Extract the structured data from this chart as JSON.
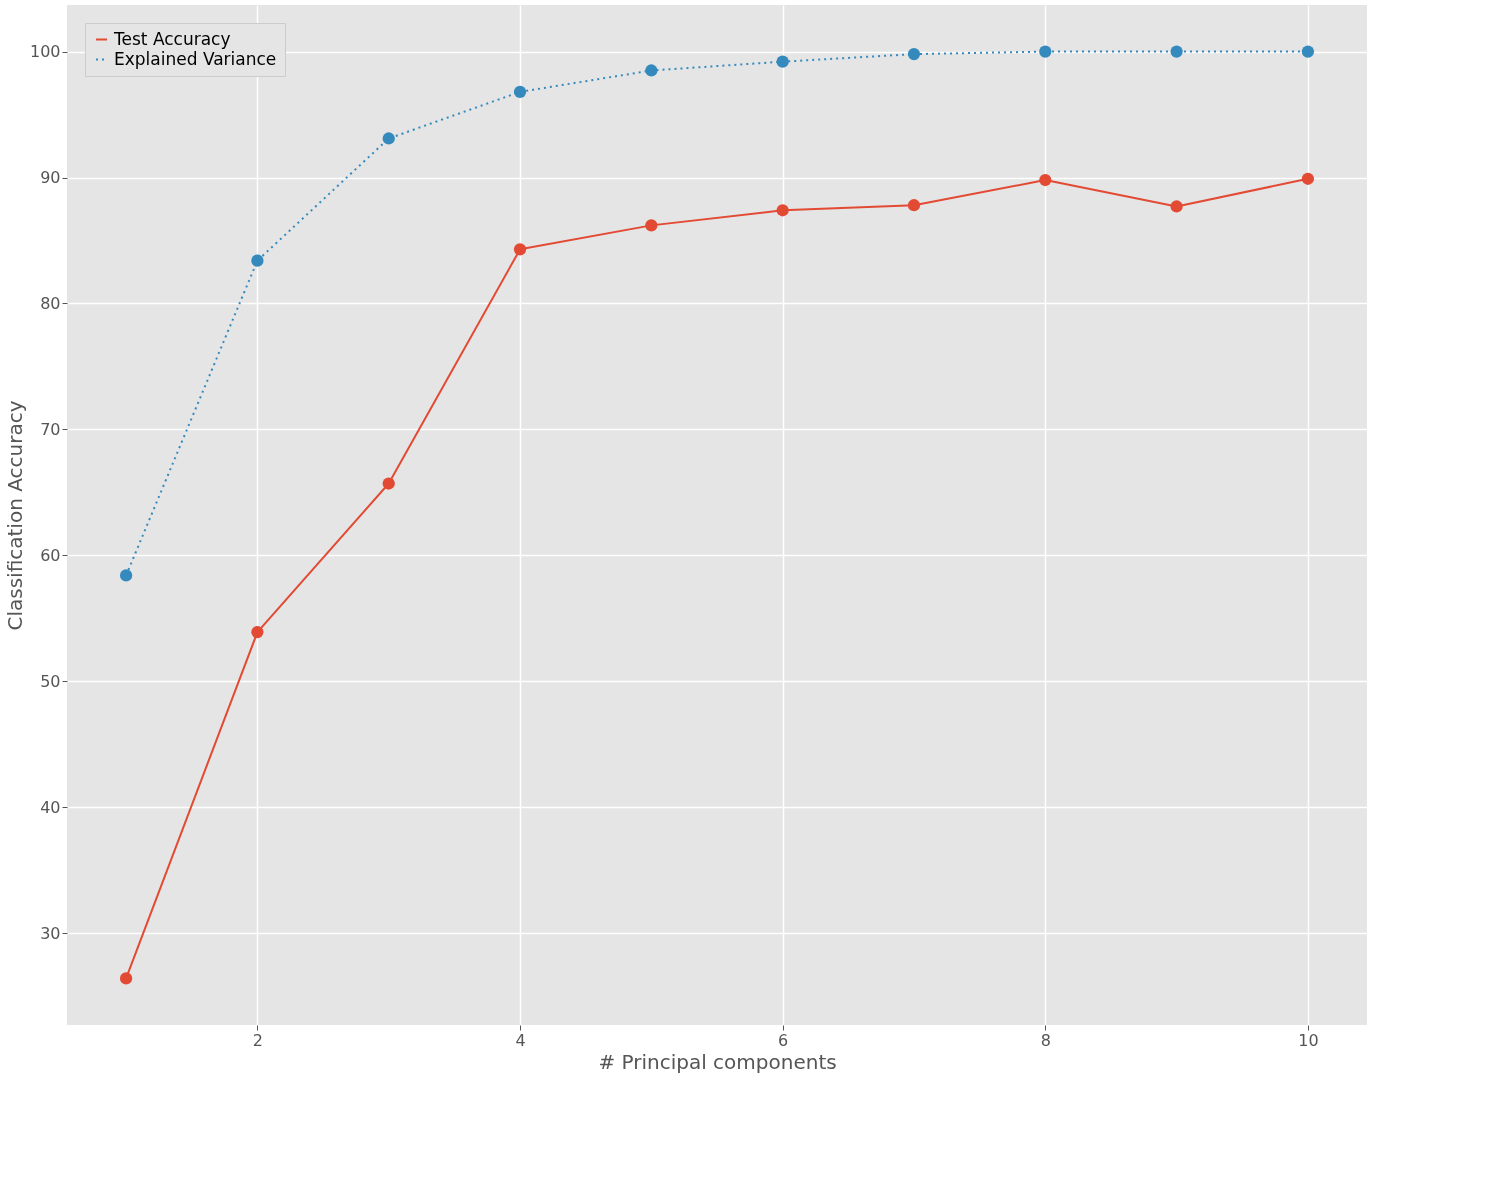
{
  "chart_data": {
    "type": "line",
    "xlabel": "# Principal components",
    "ylabel": "Classification Accuracy",
    "x": [
      1,
      2,
      3,
      4,
      5,
      6,
      7,
      8,
      9,
      10
    ],
    "series": [
      {
        "name": "Test Accuracy",
        "color": "#e24a33",
        "line_style": "solid",
        "values": [
          26.4,
          53.9,
          65.7,
          84.3,
          86.2,
          87.4,
          87.8,
          89.8,
          87.7,
          89.9
        ]
      },
      {
        "name": "Explained Variance",
        "color": "#348abd",
        "line_style": "dotted",
        "values": [
          58.4,
          83.4,
          93.1,
          96.8,
          98.5,
          99.2,
          99.8,
          100,
          100,
          100
        ]
      }
    ],
    "xlim": [
      0.55,
      10.45
    ],
    "ylim": [
      22.7,
      103.7
    ],
    "xticks": [
      2,
      4,
      6,
      8,
      10
    ],
    "yticks": [
      30,
      40,
      50,
      60,
      70,
      80,
      90,
      100
    ],
    "grid": true,
    "legend": "top left",
    "marker": "circle"
  }
}
